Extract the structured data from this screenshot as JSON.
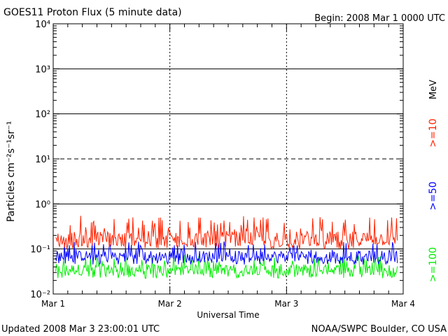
{
  "header": {
    "title": "GOES11 Proton Flux (5 minute data)",
    "begin": "Begin: 2008 Mar 1 0000 UTC"
  },
  "footer": {
    "updated": "Updated 2008 Mar  3 23:00:01 UTC",
    "credit": "NOAA/SWPC Boulder, CO USA"
  },
  "chart_data": {
    "type": "line",
    "title": "GOES11 Proton Flux (5 minute data)",
    "xlabel": "Universal Time",
    "ylabel": "Particles cm⁻²s⁻¹sr⁻¹",
    "y_scale": "log",
    "ylim": [
      0.01,
      10000
    ],
    "y_tick_labels": [
      "10⁻²",
      "10⁻¹",
      "10⁰",
      "10¹",
      "10²",
      "10³",
      "10⁴"
    ],
    "x_tick_labels": [
      "Mar 1",
      "Mar 2",
      "Mar 3",
      "Mar 4"
    ],
    "xlim_days": [
      0,
      3
    ],
    "units_label": "MeV",
    "grid": "solid lines at 10⁰,10²,10³; dashed at 10¹; dashed day separators",
    "series": [
      {
        "name": ">=10",
        "color": "#ff2200",
        "typical": 0.17,
        "low": 0.1,
        "high": 0.55
      },
      {
        "name": ">=50",
        "color": "#0000ff",
        "typical": 0.07,
        "low": 0.045,
        "high": 0.15
      },
      {
        "name": ">=100",
        "color": "#00ee00",
        "typical": 0.035,
        "low": 0.022,
        "high": 0.075
      }
    ]
  }
}
